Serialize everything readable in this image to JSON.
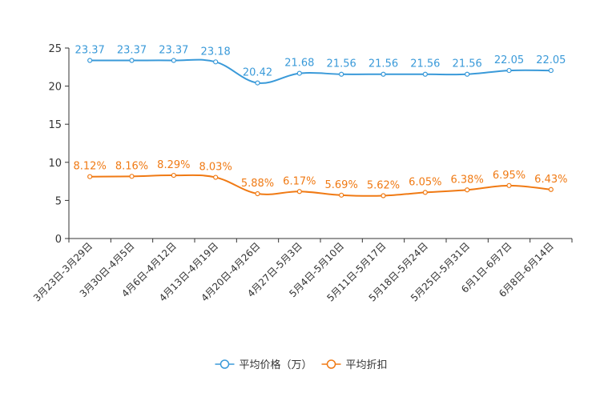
{
  "chart_data": {
    "type": "line",
    "categories": [
      "3月23日-3月29日",
      "3月30日-4月5日",
      "4月6日-4月12日",
      "4月13日-4月19日",
      "4月20日-4月26日",
      "4月27日-5月3日",
      "5月4日-5月10日",
      "5月11日-5月17日",
      "5月18日-5月24日",
      "5月25日-5月31日",
      "6月1日-6月7日",
      "6月8日-6月14日"
    ],
    "series": [
      {
        "name": "平均价格（万）",
        "color": "#3a9ad9",
        "values": [
          23.37,
          23.37,
          23.37,
          23.18,
          20.42,
          21.68,
          21.56,
          21.56,
          21.56,
          21.56,
          22.05,
          22.05
        ],
        "labels": [
          "23.37",
          "23.37",
          "23.37",
          "23.18",
          "20.42",
          "21.68",
          "21.56",
          "21.56",
          "21.56",
          "21.56",
          "22.05",
          "22.05"
        ]
      },
      {
        "name": "平均折扣",
        "color": "#f07a14",
        "values": [
          8.12,
          8.16,
          8.29,
          8.03,
          5.88,
          6.17,
          5.69,
          5.62,
          6.05,
          6.38,
          6.95,
          6.43
        ],
        "labels": [
          "8.12%",
          "8.16%",
          "8.29%",
          "8.03%",
          "5.88%",
          "6.17%",
          "5.69%",
          "5.62%",
          "6.05%",
          "6.38%",
          "6.95%",
          "6.43%"
        ]
      }
    ],
    "yticks": [
      "0",
      "5",
      "10",
      "15",
      "20",
      "25"
    ],
    "ylim": [
      0,
      25
    ],
    "title": "",
    "xlabel": "",
    "ylabel": "",
    "legend_position": "bottom-center"
  }
}
